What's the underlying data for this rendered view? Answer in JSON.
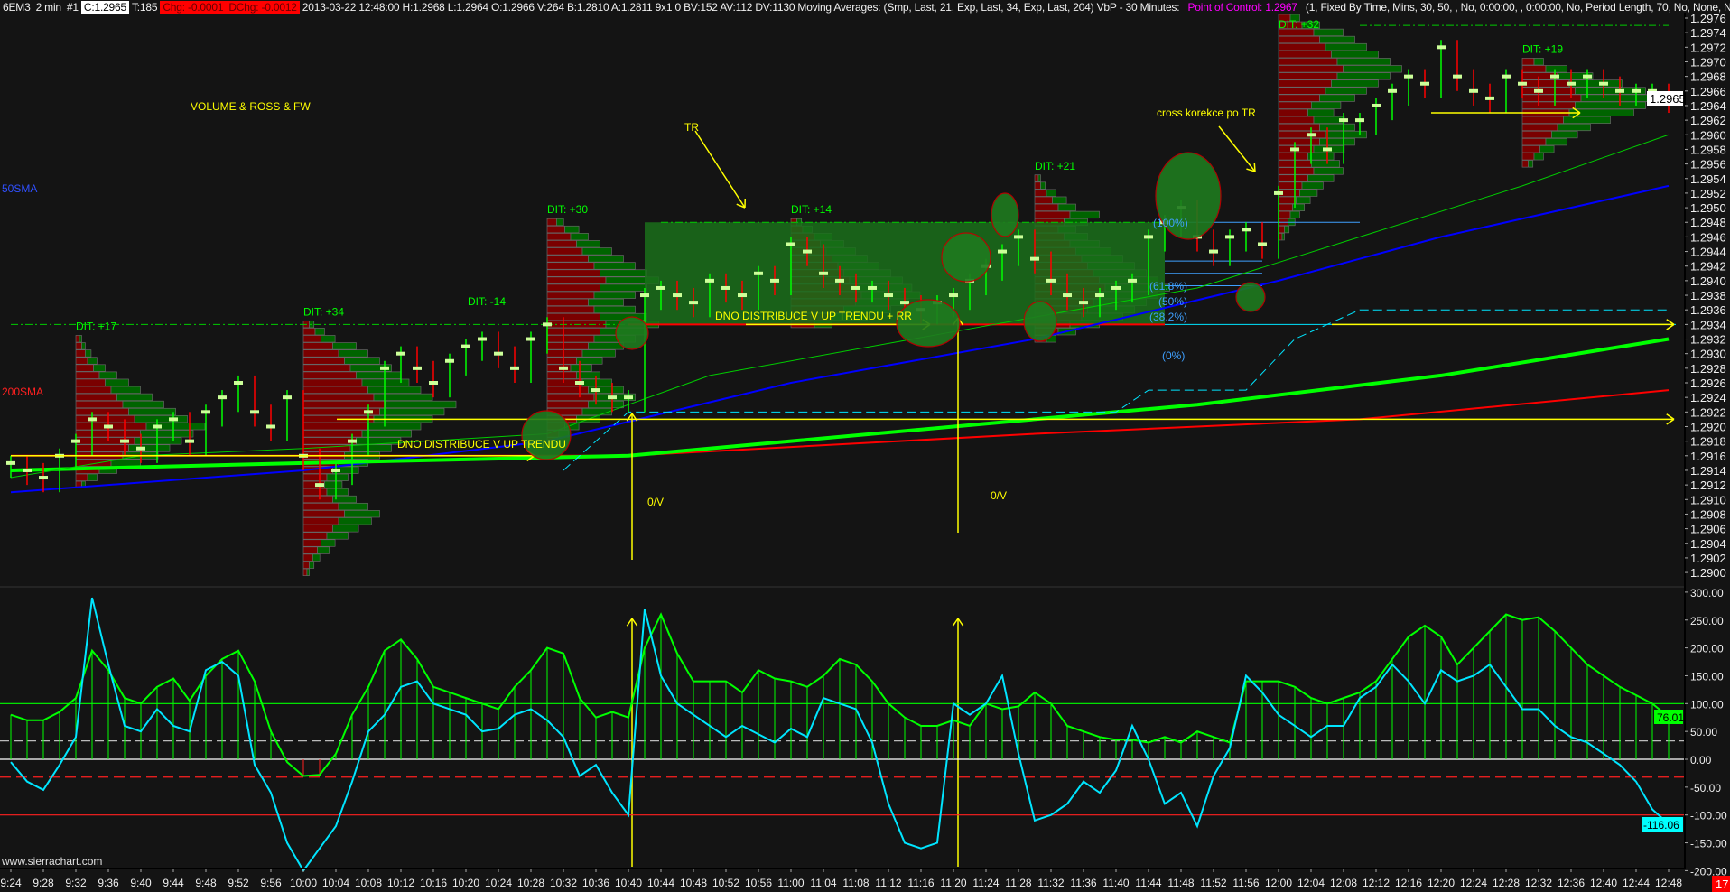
{
  "header": {
    "symbol": "6EM3",
    "period": "2 min",
    "chart_num": "#1",
    "close": "C:1.2965",
    "ticks": "T:185",
    "chg": "Chg: -0.0001",
    "dchg": "DChg: -0.0012",
    "bar_info": "2013-03-22 12:48:00 H:1.2968 L:1.2964 O:1.2966 V:264 B:1.2810 A:1.2811 9x1 0 BV:152 AV:112 DV:1130 Moving Averages:   (Smp, Last, 21, Exp, Last, 34, Exp, Last, 204)  VbP - 30 Minutes: ",
    "poc": "Point of Control: 1.2967",
    "vbp_params": " (1, Fixed By Time, Mins, 30, 50, , No, 0:00:00, , 0:00:00, No, Period Length, 70, No, None, N"
  },
  "colors": {
    "background": "#141414",
    "up": "#00ff00",
    "down": "#ff0000",
    "close_tick": "#ccff99",
    "sma50": "#0000ff",
    "sma200": "#ff0000",
    "ema_thick": "#00ff00",
    "ema_thin": "#00cc00",
    "cyan": "#00e5ff",
    "annotation": "#ffff00",
    "bid_vol": "#7a0000",
    "ask_vol": "#006400"
  },
  "chart_data": {
    "type": "line",
    "price_axis": {
      "range": [
        1.2899,
        1.2977
      ],
      "ticks": [
        "1.2976",
        "1.2974",
        "1.2972",
        "1.2970",
        "1.2968",
        "1.2966",
        "1.2964",
        "1.2962",
        "1.2960",
        "1.2958",
        "1.2956",
        "1.2954",
        "1.2952",
        "1.2950",
        "1.2948",
        "1.2946",
        "1.2944",
        "1.2942",
        "1.2940",
        "1.2938",
        "1.2936",
        "1.2934",
        "1.2932",
        "1.2930",
        "1.2928",
        "1.2926",
        "1.2924",
        "1.2922",
        "1.2920",
        "1.2918",
        "1.2916",
        "1.2914",
        "1.2912",
        "1.2910",
        "1.2908",
        "1.2906",
        "1.2904",
        "1.2902",
        "1.2900"
      ],
      "last_price": "1.2965"
    },
    "osc_axis": {
      "range": [
        -200,
        300
      ],
      "ticks": [
        "300.00",
        "250.00",
        "200.00",
        "150.00",
        "100.00",
        "50.00",
        "0.00",
        "-50.00",
        "-100.00",
        "-150.00",
        "-200.00"
      ],
      "green_last": "76.01",
      "cyan_last": "-116.06"
    },
    "time_axis": {
      "start": "9:24",
      "bar_minutes": 2,
      "labels": [
        "9:24",
        "9:28",
        "9:32",
        "9:36",
        "9:40",
        "9:44",
        "9:48",
        "9:52",
        "9:56",
        "10:00",
        "10:04",
        "10:08",
        "10:12",
        "10:16",
        "10:20",
        "10:24",
        "10:28",
        "10:32",
        "10:36",
        "10:40",
        "10:44",
        "10:48",
        "10:52",
        "10:56",
        "11:00",
        "11:04",
        "11:08",
        "11:12",
        "11:16",
        "11:20",
        "11:24",
        "11:28",
        "11:32",
        "11:36",
        "11:40",
        "11:44",
        "11:48",
        "11:52",
        "11:56",
        "12:00",
        "12:04",
        "12:08",
        "12:12",
        "12:16",
        "12:20",
        "12:24",
        "12:28",
        "12:32",
        "12:36",
        "12:40",
        "12:44",
        "12:48"
      ]
    },
    "close": [
      1.2915,
      1.2914,
      1.2913,
      1.2916,
      1.2918,
      1.2921,
      1.292,
      1.2918,
      1.2917,
      1.292,
      1.2921,
      1.2918,
      1.2922,
      1.2924,
      1.2926,
      1.2922,
      1.292,
      1.2924,
      1.2916,
      1.2912,
      1.2914,
      1.2918,
      1.2922,
      1.2928,
      1.293,
      1.2928,
      1.2926,
      1.2929,
      1.2931,
      1.2932,
      1.293,
      1.2928,
      1.2932,
      1.2934,
      1.2928,
      1.2926,
      1.2925,
      1.2924,
      1.2924,
      1.2938,
      1.2939,
      1.2938,
      1.2937,
      1.294,
      1.2939,
      1.2938,
      1.2941,
      1.294,
      1.2945,
      1.2944,
      1.2941,
      1.294,
      1.2939,
      1.2939,
      1.2938,
      1.2937,
      1.2936,
      1.2937,
      1.2938,
      1.294,
      1.2942,
      1.2944,
      1.2946,
      1.2943,
      1.294,
      1.2938,
      1.2937,
      1.2938,
      1.2939,
      1.294,
      1.2946,
      1.2948,
      1.295,
      1.2946,
      1.2944,
      1.2946,
      1.2947,
      1.2945,
      1.2952,
      1.2958,
      1.296,
      1.2958,
      1.2962,
      1.2962,
      1.2964,
      1.2966,
      1.2968,
      1.2967,
      1.2972,
      1.2968,
      1.2966,
      1.2965,
      1.2968,
      1.2967,
      1.2966,
      1.2968,
      1.2967,
      1.2968,
      1.2967,
      1.2966,
      1.2966,
      1.2966,
      1.2965
    ],
    "moving_averages": [
      {
        "name": "50SMA",
        "color": "#0000ff",
        "width": 2,
        "points": [
          [
            "9:24",
            1.2911
          ],
          [
            "10:00",
            1.2914
          ],
          [
            "10:30",
            1.2918
          ],
          [
            "11:00",
            1.2926
          ],
          [
            "11:30",
            1.2932
          ],
          [
            "12:00",
            1.294
          ],
          [
            "12:20",
            1.2946
          ],
          [
            "12:48",
            1.2953
          ]
        ]
      },
      {
        "name": "200SMA",
        "color": "#ff0000",
        "width": 2,
        "points": [
          [
            "9:24",
            1.2916
          ],
          [
            "10:40",
            1.2916
          ],
          [
            "11:30",
            1.2919
          ],
          [
            "12:10",
            1.2921
          ],
          [
            "12:48",
            1.2925
          ]
        ]
      },
      {
        "color": "#00ff00",
        "width": 4,
        "points": [
          [
            "9:24",
            1.2914
          ],
          [
            "10:00",
            1.2915
          ],
          [
            "10:40",
            1.2916
          ],
          [
            "11:20",
            1.292
          ],
          [
            "11:50",
            1.2923
          ],
          [
            "12:20",
            1.2927
          ],
          [
            "12:48",
            1.2932
          ]
        ]
      },
      {
        "color": "#00cc00",
        "width": 1,
        "points": [
          [
            "9:24",
            1.2913
          ],
          [
            "9:40",
            1.2916
          ],
          [
            "10:00",
            1.2917
          ],
          [
            "10:30",
            1.2919
          ],
          [
            "10:50",
            1.2927
          ],
          [
            "11:20",
            1.2933
          ],
          [
            "11:50",
            1.2939
          ],
          [
            "12:10",
            1.2946
          ],
          [
            "12:30",
            1.2953
          ],
          [
            "12:48",
            1.296
          ]
        ]
      },
      {
        "color": "#00e5ff",
        "width": 1,
        "dash": true,
        "points": [
          [
            "10:32",
            1.2914
          ],
          [
            "10:40",
            1.2922
          ],
          [
            "11:40",
            1.2922
          ],
          [
            "11:44",
            1.2925
          ],
          [
            "11:56",
            1.2925
          ],
          [
            "12:02",
            1.2932
          ],
          [
            "12:10",
            1.2936
          ],
          [
            "12:48",
            1.2936
          ]
        ]
      }
    ],
    "volume_profiles": [
      {
        "start": "9:32",
        "low": 1.2912,
        "dit": "DIT: +17",
        "bid": [
          5,
          10,
          20,
          30,
          40,
          45,
          50,
          55,
          60,
          50,
          45,
          40,
          35,
          30,
          25,
          20,
          15,
          10,
          8,
          5,
          3
        ],
        "ask": [
          3,
          8,
          15,
          25,
          30,
          35,
          40,
          45,
          50,
          45,
          40,
          35,
          30,
          25,
          20,
          15,
          10,
          8,
          5,
          3,
          2
        ]
      },
      {
        "start": "10:00",
        "low": 1.29,
        "dit": "DIT: +34",
        "bid": [
          3,
          5,
          8,
          12,
          15,
          20,
          25,
          30,
          35,
          30,
          25,
          20,
          18,
          20,
          25,
          30,
          35,
          40,
          45,
          50,
          55,
          60,
          65,
          70,
          60,
          55,
          50,
          45,
          40,
          35,
          30,
          25,
          15,
          10,
          5
        ],
        "ask": [
          2,
          4,
          6,
          10,
          12,
          18,
          22,
          28,
          30,
          25,
          20,
          18,
          15,
          18,
          22,
          25,
          30,
          35,
          38,
          42,
          45,
          50,
          55,
          60,
          50,
          45,
          40,
          38,
          35,
          30,
          25,
          20,
          12,
          8,
          4
        ]
      },
      {
        "start": "10:30",
        "low": 1.2918,
        "dit": "DIT: +30",
        "bid": [
          5,
          10,
          15,
          25,
          30,
          35,
          40,
          35,
          30,
          25,
          20,
          25,
          30,
          35,
          40,
          45,
          50,
          45,
          40,
          35,
          40,
          45,
          50,
          45,
          40,
          35,
          30,
          25,
          20,
          15,
          8
        ],
        "ask": [
          4,
          8,
          12,
          20,
          25,
          30,
          35,
          30,
          25,
          20,
          18,
          22,
          28,
          30,
          35,
          40,
          45,
          40,
          35,
          30,
          35,
          40,
          45,
          40,
          35,
          30,
          25,
          20,
          15,
          12,
          6
        ]
      },
      {
        "start": "11:00",
        "low": 1.2934,
        "dit": "DIT: +14",
        "bid": [
          20,
          35,
          45,
          55,
          60,
          55,
          50,
          45,
          40,
          35,
          30,
          25,
          20,
          10,
          5
        ],
        "ask": [
          15,
          30,
          40,
          45,
          50,
          48,
          45,
          40,
          35,
          30,
          25,
          20,
          15,
          8,
          4
        ]
      },
      {
        "start": "11:30",
        "low": 1.2932,
        "dit": "DIT: +21",
        "bid": [
          10,
          20,
          30,
          40,
          45,
          50,
          55,
          60,
          55,
          50,
          45,
          40,
          35,
          30,
          25,
          20,
          25,
          30,
          20,
          15,
          10,
          5,
          3
        ],
        "ask": [
          8,
          15,
          25,
          35,
          40,
          45,
          50,
          55,
          50,
          45,
          40,
          35,
          30,
          25,
          20,
          15,
          20,
          25,
          15,
          12,
          8,
          4,
          2
        ]
      },
      {
        "start": "12:00",
        "low": 1.2946,
        "dit": "DIT: +32",
        "bid": [
          3,
          5,
          8,
          10,
          12,
          15,
          18,
          20,
          25,
          30,
          28,
          25,
          30,
          35,
          40,
          35,
          30,
          25,
          28,
          35,
          40,
          45,
          50,
          55,
          50,
          45,
          40,
          35,
          30,
          20,
          10
        ],
        "ask": [
          2,
          4,
          6,
          8,
          10,
          12,
          15,
          18,
          22,
          25,
          24,
          22,
          26,
          30,
          35,
          30,
          26,
          22,
          25,
          30,
          35,
          40,
          45,
          50,
          45,
          40,
          35,
          30,
          25,
          15,
          8
        ]
      },
      {
        "start": "12:30",
        "low": 1.2956,
        "dit": "DIT: +19",
        "bid": [
          5,
          10,
          15,
          20,
          25,
          30,
          35,
          40,
          45,
          50,
          45,
          40,
          30,
          20,
          10
        ],
        "ask": [
          4,
          8,
          12,
          18,
          22,
          28,
          40,
          55,
          60,
          70,
          60,
          45,
          30,
          18,
          8
        ]
      }
    ],
    "extra_dit": "DIT: -14",
    "fib_levels": [
      "(100%)",
      "(61.8%)",
      "(50%)",
      "(38.2%)",
      "(0%)"
    ],
    "oscillator": {
      "green": [
        80,
        70,
        70,
        85,
        110,
        195,
        160,
        110,
        100,
        130,
        145,
        105,
        150,
        180,
        195,
        140,
        50,
        -5,
        -30,
        -28,
        10,
        80,
        130,
        195,
        215,
        180,
        130,
        120,
        110,
        100,
        90,
        130,
        160,
        200,
        190,
        110,
        75,
        85,
        75,
        200,
        260,
        190,
        140,
        140,
        140,
        120,
        160,
        145,
        140,
        130,
        150,
        180,
        170,
        140,
        100,
        75,
        60,
        60,
        70,
        60,
        100,
        90,
        95,
        120,
        100,
        60,
        50,
        40,
        35,
        35,
        30,
        40,
        30,
        50,
        40,
        30,
        140,
        140,
        140,
        130,
        110,
        100,
        110,
        120,
        140,
        180,
        220,
        240,
        220,
        170,
        200,
        230,
        260,
        250,
        255,
        230,
        200,
        170,
        150,
        130,
        115,
        100,
        76.01
      ],
      "cyan": [
        -5,
        -40,
        -55,
        -10,
        40,
        290,
        170,
        60,
        50,
        90,
        60,
        50,
        160,
        175,
        150,
        -10,
        -60,
        -150,
        -200,
        -160,
        -120,
        -40,
        50,
        80,
        130,
        140,
        100,
        90,
        80,
        50,
        55,
        80,
        90,
        70,
        40,
        -30,
        -10,
        -60,
        -100,
        270,
        150,
        100,
        80,
        60,
        40,
        60,
        45,
        30,
        55,
        40,
        110,
        100,
        90,
        30,
        -80,
        -150,
        -160,
        -150,
        100,
        80,
        100,
        150,
        10,
        -110,
        -100,
        -80,
        -40,
        -60,
        -20,
        60,
        0,
        -80,
        -60,
        -120,
        -30,
        20,
        150,
        120,
        80,
        60,
        40,
        60,
        60,
        110,
        130,
        170,
        140,
        100,
        160,
        140,
        150,
        170,
        130,
        90,
        90,
        60,
        40,
        30,
        10,
        -10,
        -40,
        -90,
        -116.06
      ],
      "levels": [
        100,
        33,
        0,
        -32,
        -100
      ]
    }
  },
  "annotations": {
    "title": "VOLUME & ROSS & FW",
    "sma50": "50SMA",
    "sma200": "200SMA",
    "tr": "TR",
    "cross": "cross korekce po TR",
    "dno1": "DNO DISTRIBUCE V UP TRENDU",
    "dno2": "DNO DISTRIBUCE V UP TRENDU + RR",
    "ov": "0/V"
  },
  "footer": {
    "watermark": "www.sierrachart.com",
    "badge": "17"
  }
}
